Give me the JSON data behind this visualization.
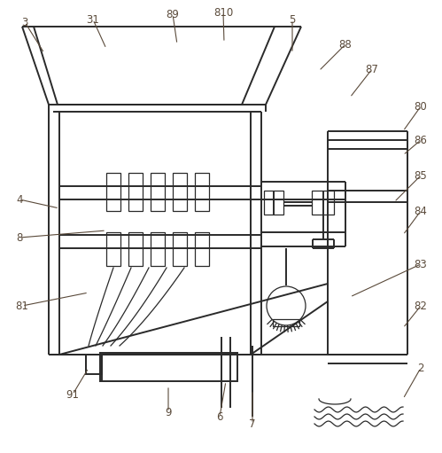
{
  "bg_color": "#ffffff",
  "line_color": "#2a2a2a",
  "lw": 1.4,
  "tlw": 0.9,
  "ann_lw": 0.8,
  "ann_fs": 8.5,
  "ann_color": "#5a4a3a"
}
